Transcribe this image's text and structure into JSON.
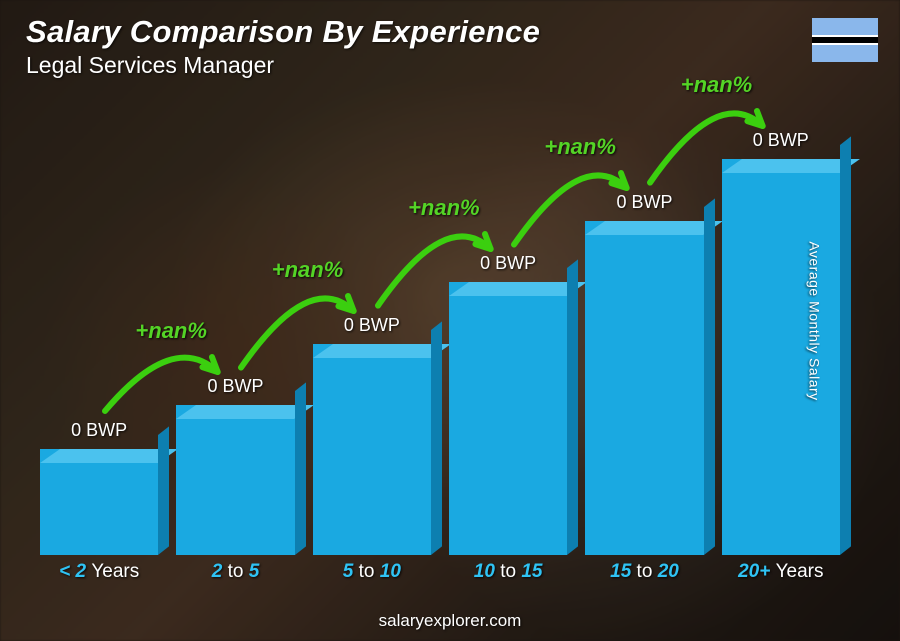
{
  "header": {
    "title": "Salary Comparison By Experience",
    "subtitle": "Legal Services Manager"
  },
  "axis_label": "Average Monthly Salary",
  "footer": "salaryexplorer.com",
  "flag": {
    "stripes": [
      "#8ab7eb",
      "#ffffff",
      "#000000",
      "#ffffff",
      "#8ab7eb"
    ],
    "stripe_heights": [
      17,
      2,
      6,
      2,
      17
    ]
  },
  "chart": {
    "type": "bar",
    "bar_color_front": "#1aa9e1",
    "bar_color_top": "#4bc2ee",
    "bar_color_side": "#0d7fb0",
    "xlabel_color_accent": "#2fc3f4",
    "xlabel_color_pale": "#ffffff",
    "arrow_color": "#3bcf0f",
    "pct_color": "#54d426",
    "background": "#1a1410",
    "bars": [
      {
        "category_pre": "< 2",
        "category_post": "Years",
        "value_label": "0 BWP",
        "height_pct": 24,
        "pct_change": null
      },
      {
        "category_pre": "2",
        "category_mid": "to",
        "category_post": "5",
        "value_label": "0 BWP",
        "height_pct": 34,
        "pct_change": "+nan%"
      },
      {
        "category_pre": "5",
        "category_mid": "to",
        "category_post": "10",
        "value_label": "0 BWP",
        "height_pct": 48,
        "pct_change": "+nan%"
      },
      {
        "category_pre": "10",
        "category_mid": "to",
        "category_post": "15",
        "value_label": "0 BWP",
        "height_pct": 62,
        "pct_change": "+nan%"
      },
      {
        "category_pre": "15",
        "category_mid": "to",
        "category_post": "20",
        "value_label": "0 BWP",
        "height_pct": 76,
        "pct_change": "+nan%"
      },
      {
        "category_pre": "20+",
        "category_post": "Years",
        "value_label": "0 BWP",
        "height_pct": 90,
        "pct_change": "+nan%"
      }
    ]
  }
}
